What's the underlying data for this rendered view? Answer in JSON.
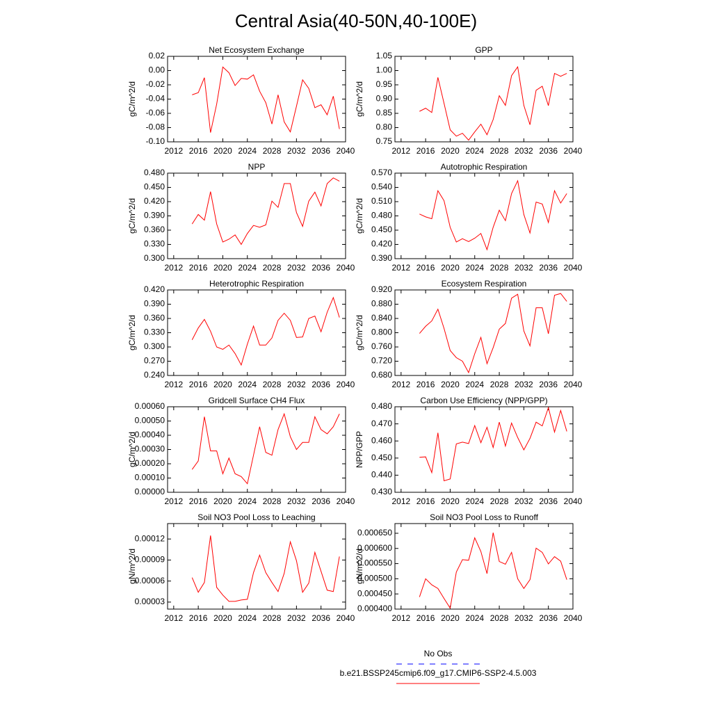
{
  "title": "Central Asia(40-50N,40-100E)",
  "legend": [
    {
      "label": "No Obs",
      "color": "#0000ff",
      "dash": true
    },
    {
      "label": "b.e21.BSSP245cmip6.f09_g17.CMIP6-SSP2-4.5.003",
      "color": "#ff0000",
      "dash": false
    }
  ],
  "chart_data": [
    {
      "type": "line",
      "title": "Net Ecosystem Exchange",
      "ylabel": "gC/m^2/d",
      "color": "#ff0000",
      "x": [
        2015,
        2016,
        2017,
        2018,
        2019,
        2020,
        2021,
        2022,
        2023,
        2024,
        2025,
        2026,
        2027,
        2028,
        2029,
        2030,
        2031,
        2032,
        2033,
        2034,
        2035,
        2036,
        2037,
        2038,
        2039
      ],
      "values": [
        -0.034,
        -0.031,
        -0.01,
        -0.087,
        -0.047,
        0.005,
        -0.003,
        -0.021,
        -0.011,
        -0.012,
        -0.006,
        -0.029,
        -0.045,
        -0.075,
        -0.034,
        -0.072,
        -0.086,
        -0.05,
        -0.013,
        -0.025,
        -0.052,
        -0.048,
        -0.062,
        -0.036,
        -0.082
      ],
      "xlim": [
        2011,
        2040
      ],
      "xticks": [
        2012,
        2016,
        2020,
        2024,
        2028,
        2032,
        2036,
        2040
      ],
      "ylim": [
        -0.1,
        0.02
      ],
      "yticks": [
        {
          "value": -0.1,
          "label": "-0.10"
        },
        -0.08,
        -0.06,
        -0.04,
        -0.02,
        {
          "value": 0,
          "label": "0.00"
        },
        0.02
      ]
    },
    {
      "type": "line",
      "title": "GPP",
      "ylabel": "gC/m^2/d",
      "color": "#ff0000",
      "x": [
        2015,
        2016,
        2017,
        2018,
        2019,
        2020,
        2021,
        2022,
        2023,
        2024,
        2025,
        2026,
        2027,
        2028,
        2029,
        2030,
        2031,
        2032,
        2033,
        2034,
        2035,
        2036,
        2037,
        2038,
        2039
      ],
      "values": [
        0.857,
        0.868,
        0.853,
        0.976,
        0.885,
        0.792,
        0.77,
        0.78,
        0.756,
        0.785,
        0.812,
        0.775,
        0.828,
        0.912,
        0.878,
        0.982,
        1.013,
        0.878,
        0.81,
        0.931,
        0.945,
        0.877,
        0.99,
        0.98,
        0.99
      ],
      "xlim": [
        2011,
        2040
      ],
      "xticks": [
        2012,
        2016,
        2020,
        2024,
        2028,
        2032,
        2036,
        2040
      ],
      "ylim": [
        0.75,
        1.05
      ],
      "yticks": [
        0.75,
        {
          "value": 0.8,
          "label": "0.80"
        },
        0.85,
        {
          "value": 0.9,
          "label": "0.90"
        },
        0.95,
        {
          "value": 1,
          "label": "1.00"
        },
        1.05
      ]
    },
    {
      "type": "line",
      "title": "NPP",
      "ylabel": "gC/m^2/d",
      "color": "#ff0000",
      "x": [
        2015,
        2016,
        2017,
        2018,
        2019,
        2020,
        2021,
        2022,
        2023,
        2024,
        2025,
        2026,
        2027,
        2028,
        2029,
        2030,
        2031,
        2032,
        2033,
        2034,
        2035,
        2036,
        2037,
        2038,
        2039
      ],
      "values": [
        0.373,
        0.393,
        0.381,
        0.441,
        0.373,
        0.335,
        0.341,
        0.35,
        0.33,
        0.353,
        0.37,
        0.366,
        0.371,
        0.421,
        0.408,
        0.458,
        0.458,
        0.397,
        0.368,
        0.421,
        0.44,
        0.411,
        0.458,
        0.47,
        0.463
      ],
      "xlim": [
        2011,
        2040
      ],
      "xticks": [
        2012,
        2016,
        2020,
        2024,
        2028,
        2032,
        2036,
        2040
      ],
      "ylim": [
        0.3,
        0.48
      ],
      "yticks": [
        {
          "value": 0.3,
          "label": "0.300"
        },
        {
          "value": 0.33,
          "label": "0.330"
        },
        {
          "value": 0.36,
          "label": "0.360"
        },
        {
          "value": 0.39,
          "label": "0.390"
        },
        {
          "value": 0.42,
          "label": "0.420"
        },
        {
          "value": 0.45,
          "label": "0.450"
        },
        {
          "value": 0.48,
          "label": "0.480"
        }
      ]
    },
    {
      "type": "line",
      "title": "Autotrophic Respiration",
      "ylabel": "gC/m^2/d",
      "color": "#ff0000",
      "x": [
        2015,
        2016,
        2017,
        2018,
        2019,
        2020,
        2021,
        2022,
        2023,
        2024,
        2025,
        2026,
        2027,
        2028,
        2029,
        2030,
        2031,
        2032,
        2033,
        2034,
        2035,
        2036,
        2037,
        2038,
        2039
      ],
      "values": [
        0.484,
        0.478,
        0.474,
        0.533,
        0.512,
        0.456,
        0.425,
        0.432,
        0.426,
        0.433,
        0.443,
        0.409,
        0.456,
        0.492,
        0.47,
        0.527,
        0.554,
        0.483,
        0.444,
        0.509,
        0.505,
        0.466,
        0.533,
        0.507,
        0.527
      ],
      "xlim": [
        2011,
        2040
      ],
      "xticks": [
        2012,
        2016,
        2020,
        2024,
        2028,
        2032,
        2036,
        2040
      ],
      "ylim": [
        0.39,
        0.57
      ],
      "yticks": [
        {
          "value": 0.39,
          "label": "0.390"
        },
        {
          "value": 0.42,
          "label": "0.420"
        },
        {
          "value": 0.45,
          "label": "0.450"
        },
        {
          "value": 0.48,
          "label": "0.480"
        },
        {
          "value": 0.51,
          "label": "0.510"
        },
        {
          "value": 0.54,
          "label": "0.540"
        },
        {
          "value": 0.57,
          "label": "0.570"
        }
      ]
    },
    {
      "type": "line",
      "title": "Heterotrophic Respiration",
      "ylabel": "gC/m^2/d",
      "color": "#ff0000",
      "x": [
        2015,
        2016,
        2017,
        2018,
        2019,
        2020,
        2021,
        2022,
        2023,
        2024,
        2025,
        2026,
        2027,
        2028,
        2029,
        2030,
        2031,
        2032,
        2033,
        2034,
        2035,
        2036,
        2037,
        2038,
        2039
      ],
      "values": [
        0.315,
        0.34,
        0.358,
        0.333,
        0.3,
        0.295,
        0.304,
        0.286,
        0.262,
        0.306,
        0.344,
        0.304,
        0.304,
        0.319,
        0.356,
        0.371,
        0.356,
        0.32,
        0.321,
        0.36,
        0.365,
        0.332,
        0.373,
        0.404,
        0.362
      ],
      "xlim": [
        2011,
        2040
      ],
      "xticks": [
        2012,
        2016,
        2020,
        2024,
        2028,
        2032,
        2036,
        2040
      ],
      "ylim": [
        0.24,
        0.42
      ],
      "yticks": [
        {
          "value": 0.24,
          "label": "0.240"
        },
        {
          "value": 0.27,
          "label": "0.270"
        },
        {
          "value": 0.3,
          "label": "0.300"
        },
        {
          "value": 0.33,
          "label": "0.330"
        },
        {
          "value": 0.36,
          "label": "0.360"
        },
        {
          "value": 0.39,
          "label": "0.390"
        },
        {
          "value": 0.42,
          "label": "0.420"
        }
      ]
    },
    {
      "type": "line",
      "title": "Ecosystem Respiration",
      "ylabel": "gC/m^2/d",
      "color": "#ff0000",
      "x": [
        2015,
        2016,
        2017,
        2018,
        2019,
        2020,
        2021,
        2022,
        2023,
        2024,
        2025,
        2026,
        2027,
        2028,
        2029,
        2030,
        2031,
        2032,
        2033,
        2034,
        2035,
        2036,
        2037,
        2038,
        2039
      ],
      "values": [
        0.798,
        0.818,
        0.833,
        0.866,
        0.812,
        0.75,
        0.73,
        0.72,
        0.688,
        0.741,
        0.787,
        0.713,
        0.758,
        0.81,
        0.826,
        0.897,
        0.908,
        0.805,
        0.763,
        0.87,
        0.87,
        0.797,
        0.905,
        0.91,
        0.888
      ],
      "xlim": [
        2011,
        2040
      ],
      "xticks": [
        2012,
        2016,
        2020,
        2024,
        2028,
        2032,
        2036,
        2040
      ],
      "ylim": [
        0.68,
        0.92
      ],
      "yticks": [
        {
          "value": 0.68,
          "label": "0.680"
        },
        {
          "value": 0.72,
          "label": "0.720"
        },
        {
          "value": 0.76,
          "label": "0.760"
        },
        {
          "value": 0.8,
          "label": "0.800"
        },
        {
          "value": 0.84,
          "label": "0.840"
        },
        {
          "value": 0.88,
          "label": "0.880"
        },
        {
          "value": 0.92,
          "label": "0.920"
        }
      ]
    },
    {
      "type": "line",
      "title": "Gridcell Surface CH4 Flux",
      "ylabel": "gC/m^2/d",
      "color": "#ff0000",
      "x": [
        2015,
        2016,
        2017,
        2018,
        2019,
        2020,
        2021,
        2022,
        2023,
        2024,
        2025,
        2026,
        2027,
        2028,
        2029,
        2030,
        2031,
        2032,
        2033,
        2034,
        2035,
        2036,
        2037,
        2038,
        2039
      ],
      "values": [
        0.00016,
        0.00022,
        0.00053,
        0.00029,
        0.00029,
        0.00013,
        0.00024,
        0.00013,
        0.00011,
        6e-05,
        0.00026,
        0.00046,
        0.00028,
        0.00026,
        0.00044,
        0.00055,
        0.00039,
        0.0003,
        0.00035,
        0.00035,
        0.00053,
        0.00044,
        0.00041,
        0.00046,
        0.00055
      ],
      "xlim": [
        2011,
        2040
      ],
      "xticks": [
        2012,
        2016,
        2020,
        2024,
        2028,
        2032,
        2036,
        2040
      ],
      "ylim": [
        0,
        0.0006
      ],
      "yticks": [
        {
          "value": 0,
          "label": "0.00000"
        },
        {
          "value": 0.0001,
          "label": "0.00010"
        },
        {
          "value": 0.0002,
          "label": "0.00020"
        },
        {
          "value": 0.0003,
          "label": "0.00030"
        },
        {
          "value": 0.0004,
          "label": "0.00040"
        },
        {
          "value": 0.0005,
          "label": "0.00050"
        },
        {
          "value": 0.0006,
          "label": "0.00060"
        }
      ]
    },
    {
      "type": "line",
      "title": "Carbon Use Efficiency (NPP/GPP)",
      "ylabel": "NPP/GPP",
      "color": "#ff0000",
      "x": [
        2015,
        2016,
        2017,
        2018,
        2019,
        2020,
        2021,
        2022,
        2023,
        2024,
        2025,
        2026,
        2027,
        2028,
        2029,
        2030,
        2031,
        2032,
        2033,
        2034,
        2035,
        2036,
        2037,
        2038,
        2039
      ],
      "values": [
        0.4505,
        0.4507,
        0.4415,
        0.4648,
        0.4367,
        0.4378,
        0.4583,
        0.4593,
        0.4585,
        0.469,
        0.459,
        0.468,
        0.4562,
        0.471,
        0.457,
        0.4705,
        0.462,
        0.4548,
        0.4615,
        0.471,
        0.4688,
        0.4795,
        0.4652,
        0.4778,
        0.4656
      ],
      "xlim": [
        2011,
        2040
      ],
      "xticks": [
        2012,
        2016,
        2020,
        2024,
        2028,
        2032,
        2036,
        2040
      ],
      "ylim": [
        0.43,
        0.48
      ],
      "yticks": [
        {
          "value": 0.43,
          "label": "0.430"
        },
        {
          "value": 0.44,
          "label": "0.440"
        },
        {
          "value": 0.45,
          "label": "0.450"
        },
        {
          "value": 0.46,
          "label": "0.460"
        },
        {
          "value": 0.47,
          "label": "0.470"
        },
        {
          "value": 0.48,
          "label": "0.480"
        }
      ]
    },
    {
      "type": "line",
      "title": "Soil NO3 Pool Loss to Leaching",
      "ylabel": "gN/m^2/d",
      "color": "#ff0000",
      "x": [
        2015,
        2016,
        2017,
        2018,
        2019,
        2020,
        2021,
        2022,
        2023,
        2024,
        2025,
        2026,
        2027,
        2028,
        2029,
        2030,
        2031,
        2032,
        2033,
        2034,
        2035,
        2036,
        2037,
        2038,
        2039
      ],
      "values": [
        6.5e-05,
        4.4e-05,
        5.8e-05,
        0.000125,
        5.1e-05,
        4e-05,
        3.1e-05,
        3.1e-05,
        3.3e-05,
        3.4e-05,
        7.2e-05,
        9.7e-05,
        7.2e-05,
        5.8e-05,
        4.5e-05,
        7.1e-05,
        0.000116,
        8.9e-05,
        4.4e-05,
        5.7e-05,
        0.000101,
        7.4e-05,
        4.7e-05,
        4.5e-05,
        9.5e-05
      ],
      "xlim": [
        2011,
        2040
      ],
      "xticks": [
        2012,
        2016,
        2020,
        2024,
        2028,
        2032,
        2036,
        2040
      ],
      "ylim": [
        2e-05,
        0.000142
      ],
      "yticks": [
        3e-05,
        6e-05,
        9e-05,
        0.00012
      ]
    },
    {
      "type": "line",
      "title": "Soil NO3 Pool Loss to Runoff",
      "ylabel": "gN/m^2/d",
      "color": "#ff0000",
      "x": [
        2015,
        2016,
        2017,
        2018,
        2019,
        2020,
        2021,
        2022,
        2023,
        2024,
        2025,
        2026,
        2027,
        2028,
        2029,
        2030,
        2031,
        2032,
        2033,
        2034,
        2035,
        2036,
        2037,
        2038,
        2039
      ],
      "values": [
        0.00044,
        0.0005,
        0.00048,
        0.000468,
        0.000435,
        0.000403,
        0.000522,
        0.000563,
        0.000561,
        0.000635,
        0.00059,
        0.000517,
        0.000652,
        0.000557,
        0.000548,
        0.000587,
        0.0005,
        0.000468,
        0.000497,
        0.000601,
        0.000587,
        0.000549,
        0.000573,
        0.000558,
        0.000497
      ],
      "xlim": [
        2011,
        2040
      ],
      "xticks": [
        2012,
        2016,
        2020,
        2024,
        2028,
        2032,
        2036,
        2040
      ],
      "ylim": [
        0.0004,
        0.000682
      ],
      "yticks": [
        {
          "value": 0.0004,
          "label": "0.000400"
        },
        {
          "value": 0.00045,
          "label": "0.000450"
        },
        {
          "value": 0.0005,
          "label": "0.000500"
        },
        {
          "value": 0.00055,
          "label": "0.000550"
        },
        {
          "value": 0.0006,
          "label": "0.000600"
        },
        {
          "value": 0.00065,
          "label": "0.000650"
        }
      ]
    }
  ]
}
